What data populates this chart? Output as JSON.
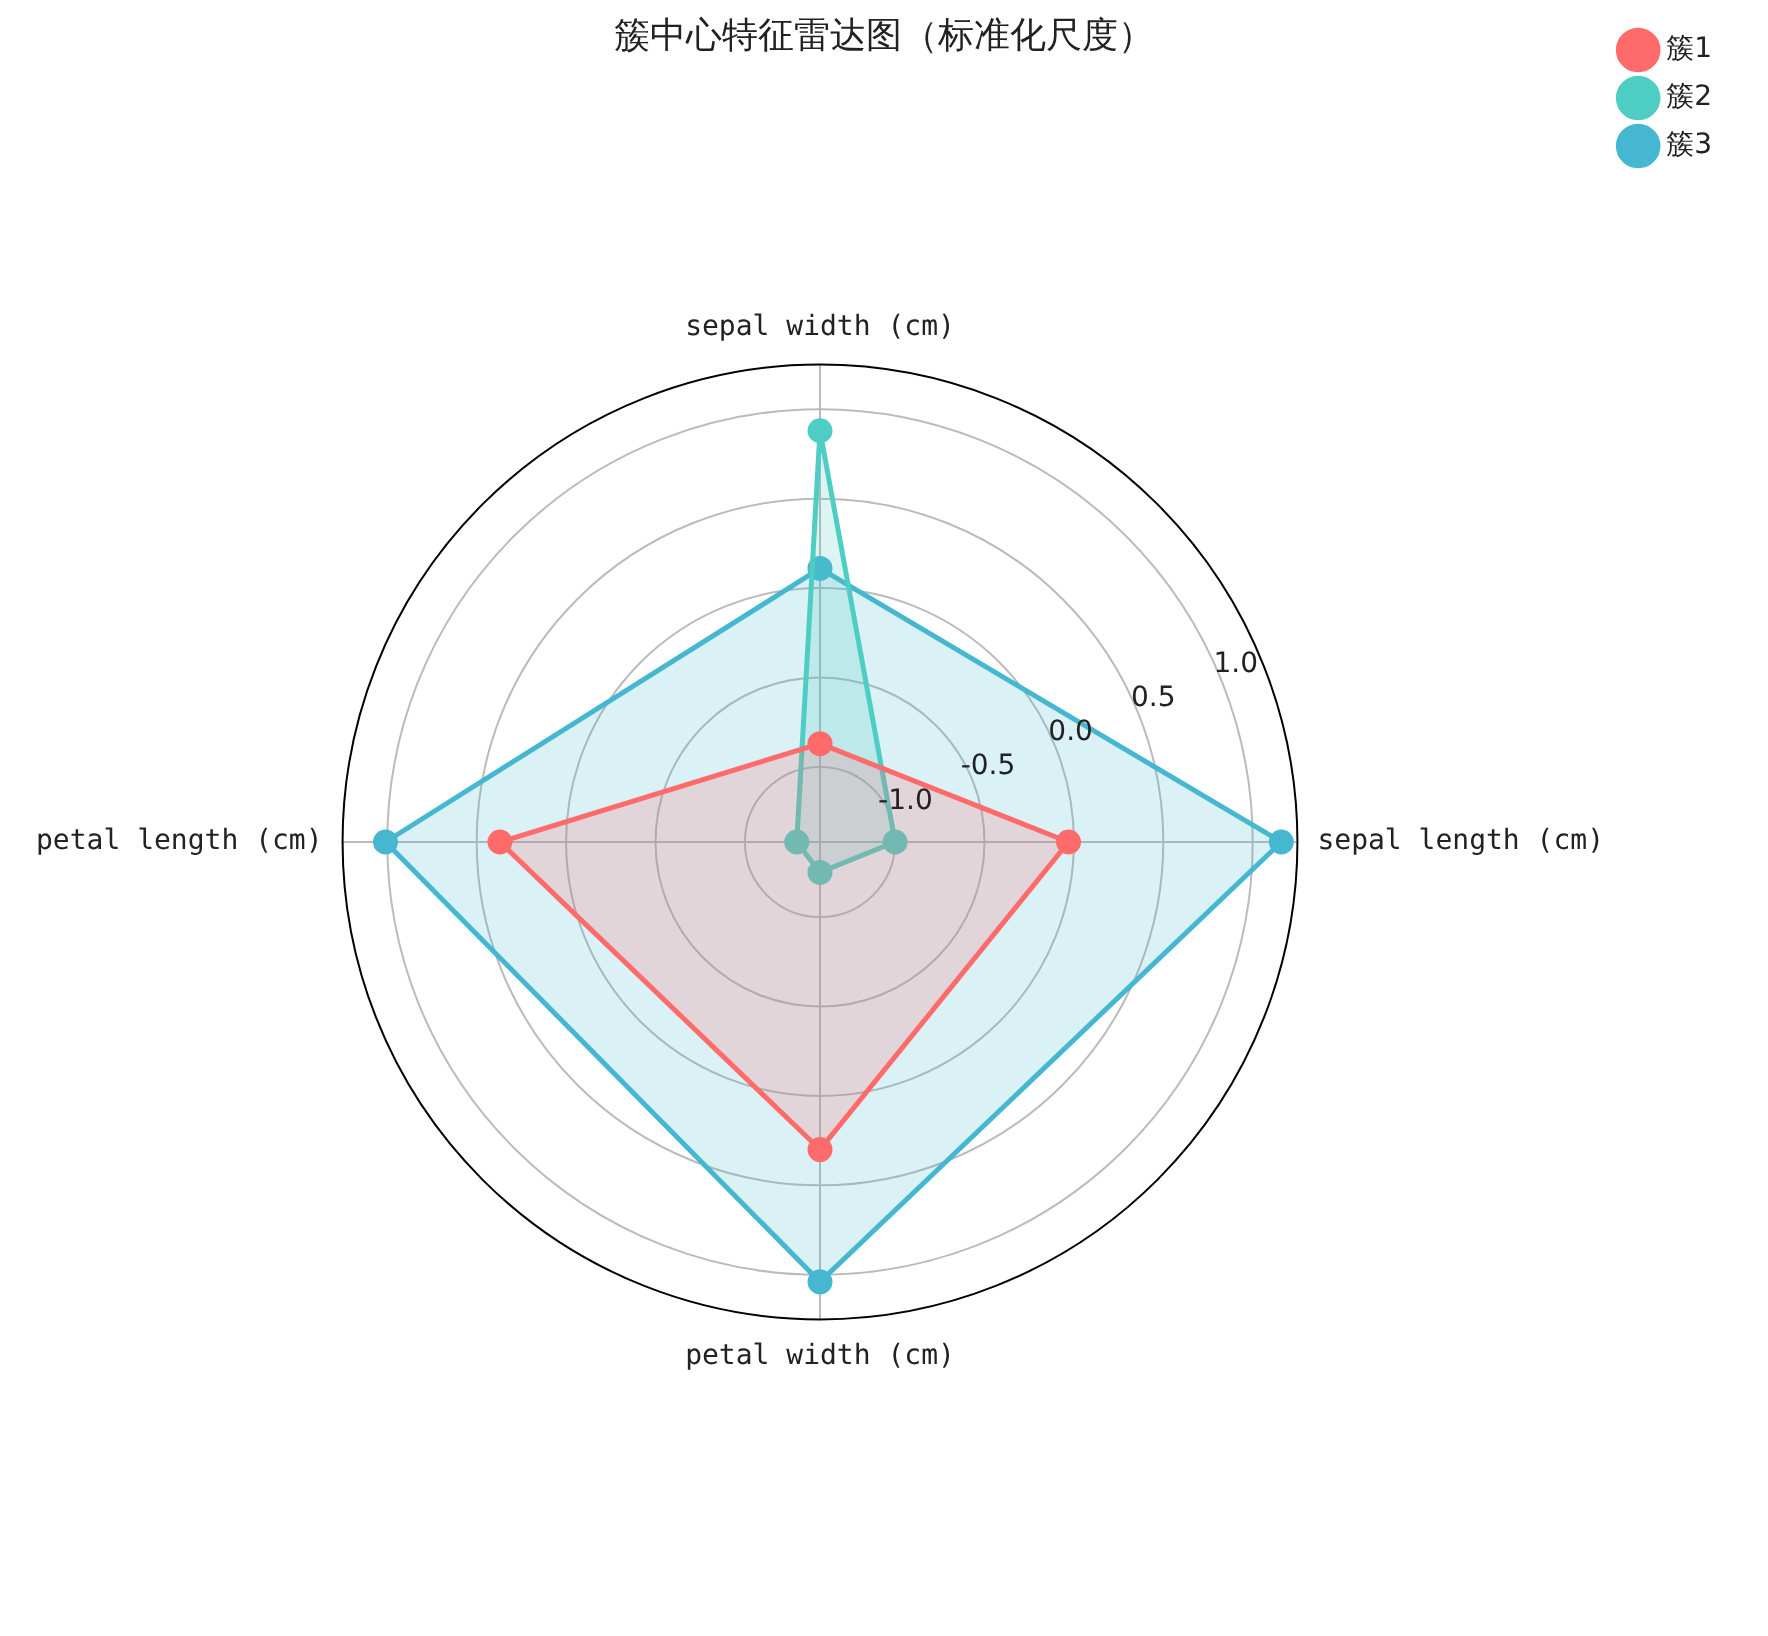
{
  "chart_data": {
    "type": "radar",
    "title": "簇中心特征雷达图（标准化尺度）",
    "categories": [
      "sepal width (cm)",
      "sepal length (cm)",
      "petal width (cm)",
      "petal length (cm)"
    ],
    "series": [
      {
        "name": "簇1",
        "color": "#ff6b6b",
        "values": [
          -0.87,
          -0.03,
          0.3,
          0.37
        ]
      },
      {
        "name": "簇2",
        "color": "#4ecdc4",
        "values": [
          0.88,
          -1.0,
          -1.25,
          -1.29
        ]
      },
      {
        "name": "簇3",
        "color": "#45b7d1",
        "values": [
          0.11,
          1.16,
          1.04,
          1.01
        ]
      }
    ],
    "ylim": [
      -1.42,
      1.25
    ],
    "yticks": [
      {
        "value": -1,
        "label": "-1.0"
      },
      {
        "value": -0.5,
        "label": "-0.5"
      },
      {
        "value": 0,
        "label": "0.0"
      },
      {
        "value": 0.5,
        "label": "0.5"
      },
      {
        "value": 1,
        "label": "1.0"
      }
    ],
    "grid": true,
    "legend": "top right",
    "marker": "circle",
    "line_style": "solid"
  }
}
